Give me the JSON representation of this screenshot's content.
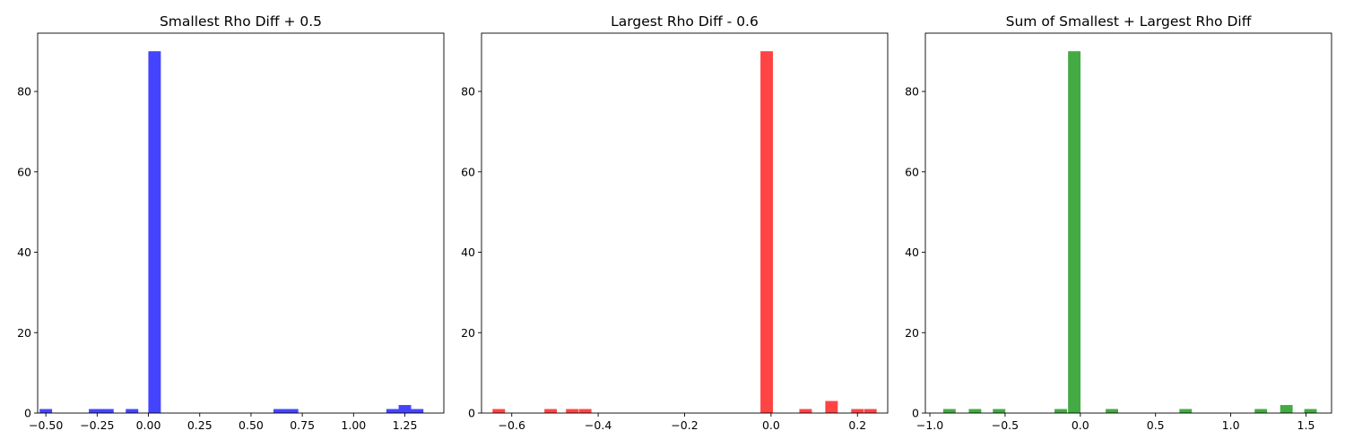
{
  "chart_data": [
    {
      "type": "bar",
      "title": "Smallest Rho Diff + 0.5",
      "xlabel": "",
      "ylabel": "",
      "color": "#4444ff",
      "xlim": [
        -0.54,
        1.44
      ],
      "ylim": [
        0,
        94.5
      ],
      "xticks": [
        {
          "value": -0.5,
          "label": "−0.50"
        },
        {
          "value": -0.25,
          "label": "−0.25"
        },
        {
          "value": 0.0,
          "label": "0.00"
        },
        {
          "value": 0.25,
          "label": "0.25"
        },
        {
          "value": 0.5,
          "label": "0.50"
        },
        {
          "value": 0.75,
          "label": "0.75"
        },
        {
          "value": 1.0,
          "label": "1.00"
        },
        {
          "value": 1.25,
          "label": "1.25"
        }
      ],
      "yticks": [
        {
          "value": 0,
          "label": "0"
        },
        {
          "value": 20,
          "label": "20"
        },
        {
          "value": 40,
          "label": "40"
        },
        {
          "value": 60,
          "label": "60"
        },
        {
          "value": 80,
          "label": "80"
        }
      ],
      "bin_width": 0.0609,
      "bins": [
        {
          "x": -0.5,
          "count": 1
        },
        {
          "x": -0.26,
          "count": 1
        },
        {
          "x": -0.2,
          "count": 1
        },
        {
          "x": -0.08,
          "count": 1
        },
        {
          "x": 0.03,
          "count": 90
        },
        {
          "x": 0.64,
          "count": 1
        },
        {
          "x": 0.7,
          "count": 1
        },
        {
          "x": 1.19,
          "count": 1
        },
        {
          "x": 1.25,
          "count": 2
        },
        {
          "x": 1.31,
          "count": 1
        }
      ]
    },
    {
      "type": "bar",
      "title": "Largest Rho Diff - 0.6",
      "xlabel": "",
      "ylabel": "",
      "color": "#ff4444",
      "xlim": [
        -0.67,
        0.27
      ],
      "ylim": [
        0,
        94.5
      ],
      "xticks": [
        {
          "value": -0.6,
          "label": "−0.6"
        },
        {
          "value": -0.4,
          "label": "−0.4"
        },
        {
          "value": -0.2,
          "label": "−0.2"
        },
        {
          "value": 0.0,
          "label": "0.0"
        },
        {
          "value": 0.2,
          "label": "0.2"
        }
      ],
      "yticks": [
        {
          "value": 0,
          "label": "0"
        },
        {
          "value": 20,
          "label": "20"
        },
        {
          "value": 40,
          "label": "40"
        },
        {
          "value": 60,
          "label": "60"
        },
        {
          "value": 80,
          "label": "80"
        }
      ],
      "bin_width": 0.0289,
      "bins": [
        {
          "x": -0.63,
          "count": 1
        },
        {
          "x": -0.51,
          "count": 1
        },
        {
          "x": -0.46,
          "count": 1
        },
        {
          "x": -0.43,
          "count": 1
        },
        {
          "x": -0.01,
          "count": 90
        },
        {
          "x": 0.08,
          "count": 1
        },
        {
          "x": 0.14,
          "count": 3
        },
        {
          "x": 0.2,
          "count": 1
        },
        {
          "x": 0.23,
          "count": 1
        }
      ]
    },
    {
      "type": "bar",
      "title": "Sum of Smallest + Largest Rho Diff",
      "xlabel": "",
      "ylabel": "",
      "color": "#44aa44",
      "xlim": [
        -1.03,
        1.67
      ],
      "ylim": [
        0,
        94.5
      ],
      "xticks": [
        {
          "value": -1.0,
          "label": "−1.0"
        },
        {
          "value": -0.5,
          "label": "−0.5"
        },
        {
          "value": 0.0,
          "label": "0.0"
        },
        {
          "value": 0.5,
          "label": "0.5"
        },
        {
          "value": 1.0,
          "label": "1.0"
        },
        {
          "value": 1.5,
          "label": "1.5"
        }
      ],
      "yticks": [
        {
          "value": 0,
          "label": "0"
        },
        {
          "value": 20,
          "label": "20"
        },
        {
          "value": 40,
          "label": "40"
        },
        {
          "value": 60,
          "label": "60"
        },
        {
          "value": 80,
          "label": "80"
        }
      ],
      "bin_width": 0.0828,
      "bins": [
        {
          "x": -0.87,
          "count": 1
        },
        {
          "x": -0.7,
          "count": 1
        },
        {
          "x": -0.54,
          "count": 1
        },
        {
          "x": -0.13,
          "count": 1
        },
        {
          "x": -0.04,
          "count": 90
        },
        {
          "x": 0.21,
          "count": 1
        },
        {
          "x": 0.7,
          "count": 1
        },
        {
          "x": 1.2,
          "count": 1
        },
        {
          "x": 1.37,
          "count": 2
        },
        {
          "x": 1.53,
          "count": 1
        }
      ]
    }
  ]
}
